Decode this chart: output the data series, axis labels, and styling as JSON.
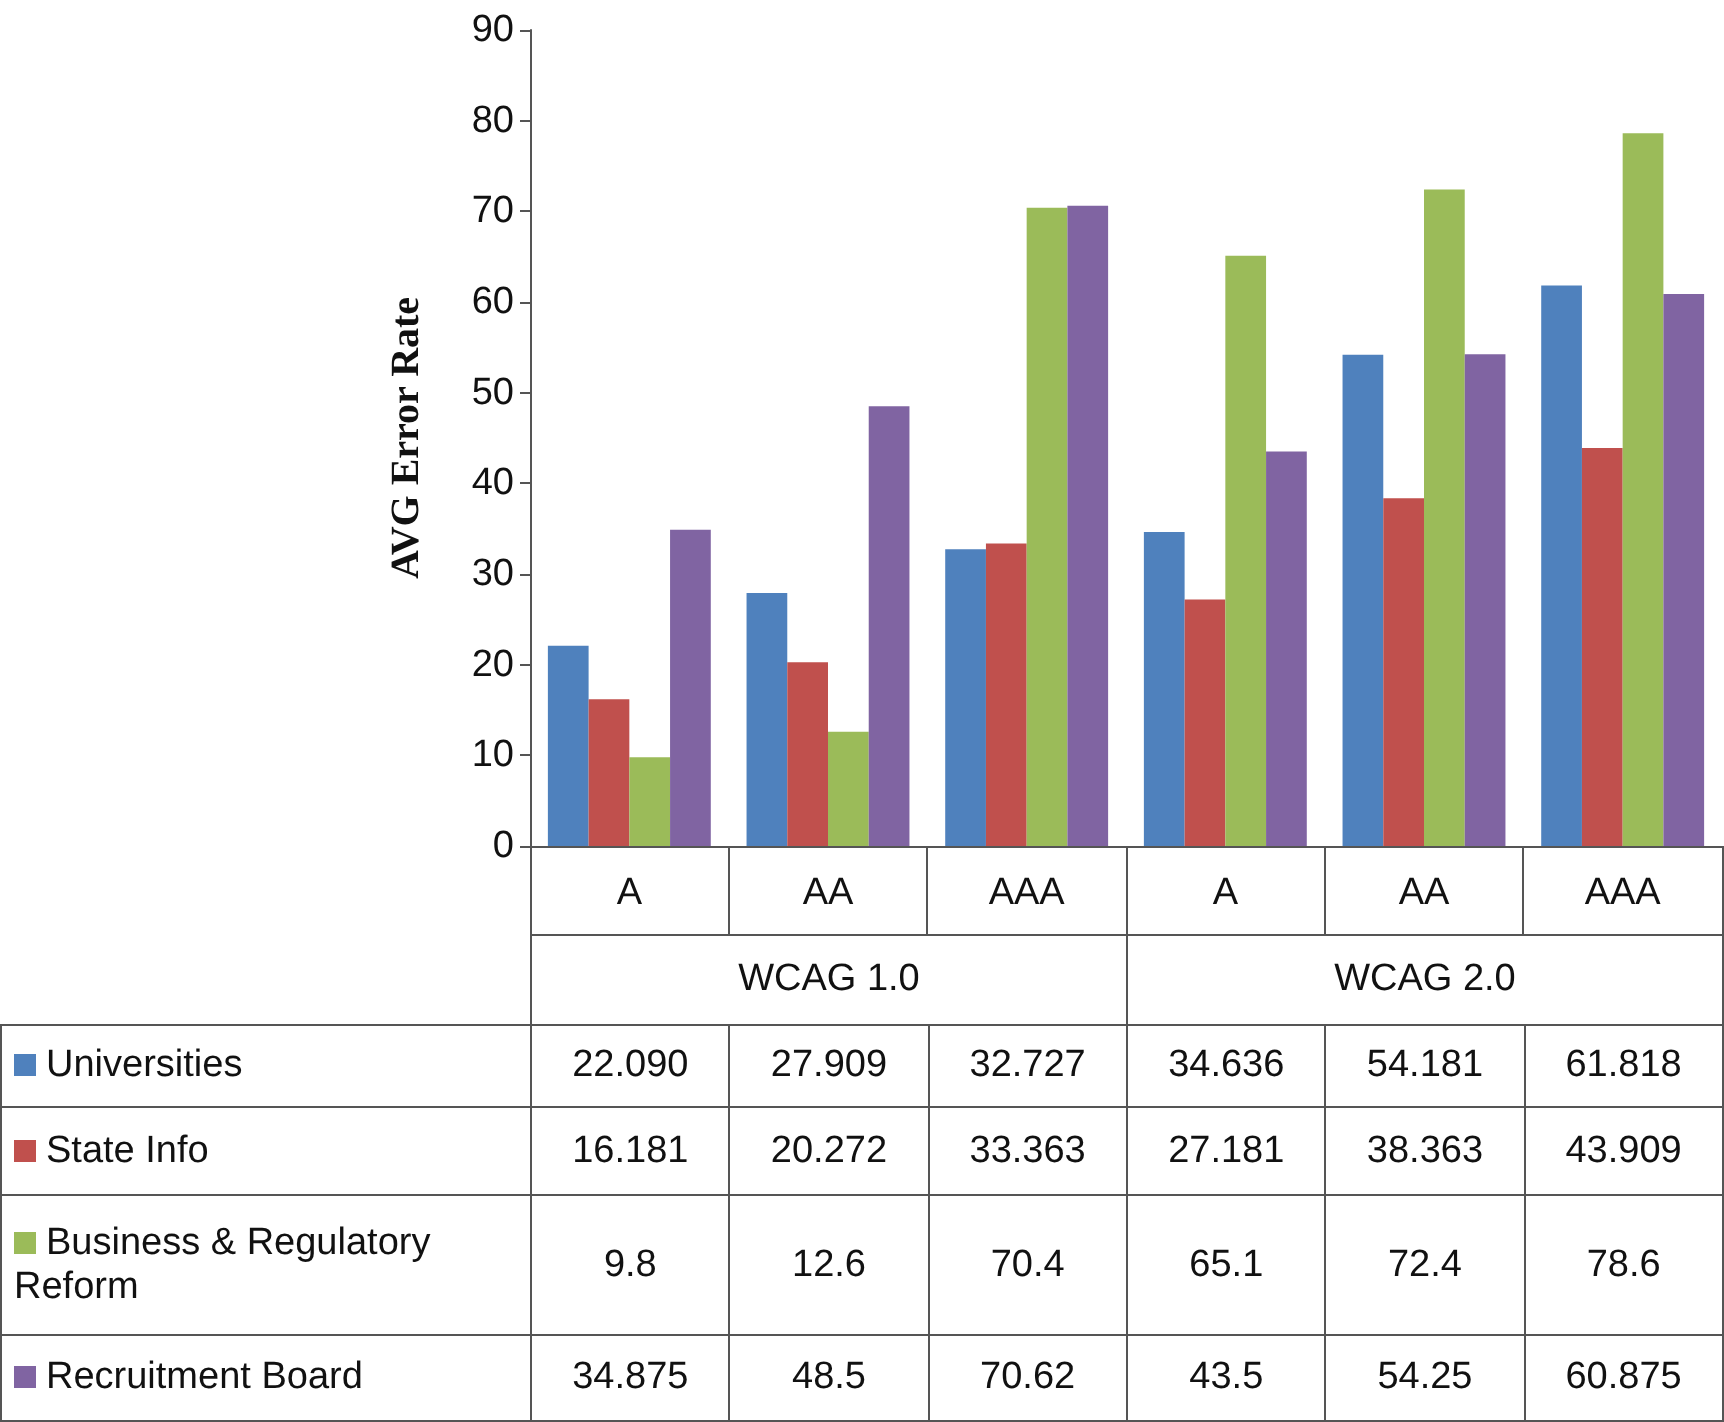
{
  "chart_data": {
    "type": "bar",
    "ylabel": "AVG Error Rate",
    "categories": [
      "A",
      "AA",
      "AAA",
      "A",
      "AA",
      "AAA"
    ],
    "annotations": [
      "WCAG 1.0",
      "WCAG 2.0"
    ],
    "series": [
      {
        "name": "Universities",
        "color": "#4f81bd",
        "values": [
          22.09,
          27.909,
          32.727,
          34.636,
          54.181,
          61.818
        ],
        "value_labels": [
          "22.090",
          "27.909",
          "32.727",
          "34.636",
          "54.181",
          "61.818"
        ]
      },
      {
        "name": "State Info",
        "color": "#c0504d",
        "values": [
          16.181,
          20.272,
          33.363,
          27.181,
          38.363,
          43.909
        ],
        "value_labels": [
          "16.181",
          "20.272",
          "33.363",
          "27.181",
          "38.363",
          "43.909"
        ]
      },
      {
        "name": "Business & Regulatory Reform",
        "color": "#9bbb59",
        "values": [
          9.8,
          12.6,
          70.4,
          65.1,
          72.4,
          78.6
        ],
        "value_labels": [
          "9.8",
          "12.6",
          "70.4",
          "65.1",
          "72.4",
          "78.6"
        ]
      },
      {
        "name": "Recruitment Board",
        "color": "#8064a2",
        "values": [
          34.875,
          48.5,
          70.62,
          43.5,
          54.25,
          60.875
        ],
        "value_labels": [
          "34.875",
          "48.5",
          "70.62",
          "43.5",
          "54.25",
          "60.875"
        ]
      }
    ],
    "ylim": [
      0,
      90
    ],
    "yticks": [
      0,
      10,
      20,
      30,
      40,
      50,
      60,
      70,
      80,
      90
    ],
    "grid": false,
    "legend": "bottom"
  }
}
